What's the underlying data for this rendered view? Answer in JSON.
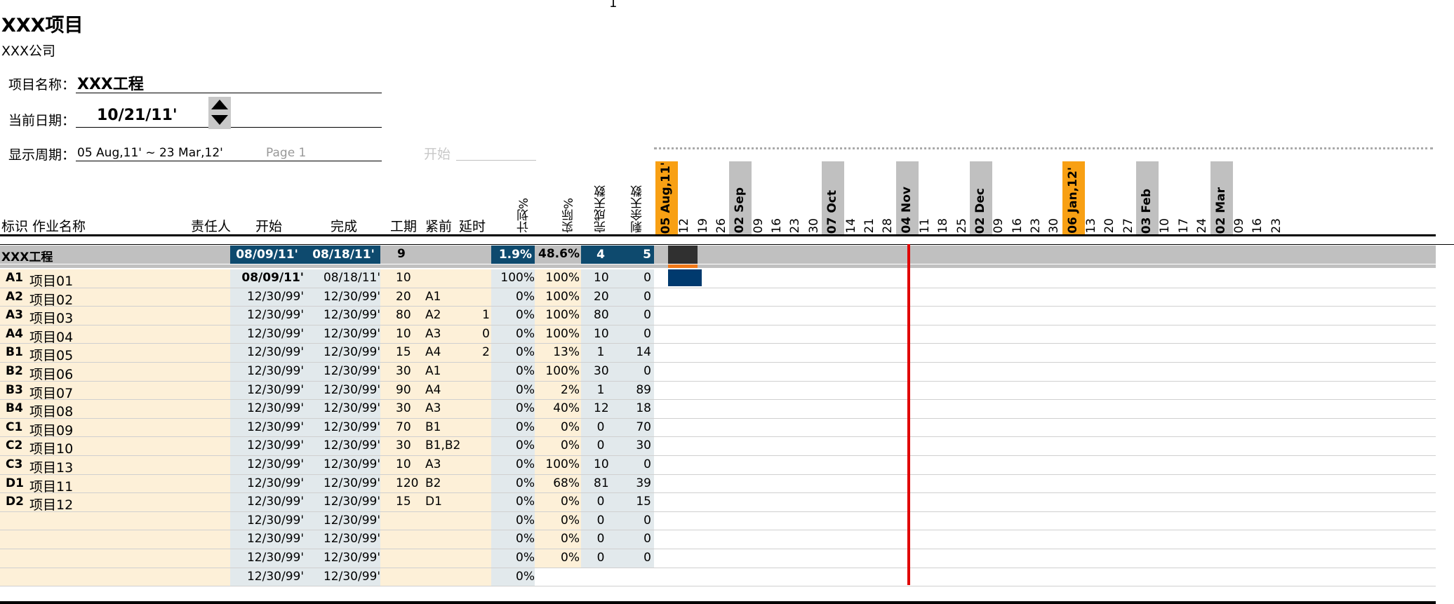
{
  "page_number": "1",
  "title": "XXX项目",
  "company": "XXX公司",
  "fields": {
    "project_name_label": "项目名称：",
    "project_name_value": "XXX工程",
    "current_date_label": "当前日期：",
    "current_date_value": "10/21/11'",
    "period_label": "显示周期：",
    "period_value": "05 Aug,11' ~ 23 Mar,12'",
    "page_label": "Page 1",
    "start_label": "开始"
  },
  "headers": {
    "id_name": "标识 作业名称",
    "owner": "责任人",
    "start": "开始",
    "finish": "完成",
    "duration": "工期",
    "predecessor": "紧前",
    "delay": "延时",
    "planned_pct": "计划%",
    "actual_pct": "实际%",
    "done_days": "完成天数",
    "remaining_days": "剩余天数"
  },
  "weeks": [
    "05 Aug,11'",
    "12",
    "19",
    "26",
    "02 Sep",
    "09",
    "16",
    "23",
    "30",
    "07 Oct",
    "14",
    "21",
    "28",
    "04 Nov",
    "11",
    "18",
    "25",
    "02 Dec",
    "09",
    "16",
    "23",
    "30",
    "06 Jan,12'",
    "13",
    "20",
    "27",
    "03 Feb",
    "10",
    "17",
    "24",
    "02 Mar",
    "09",
    "16",
    "23"
  ],
  "summary": {
    "name": "XXX工程",
    "start": "08/09/11'",
    "finish": "08/18/11'",
    "duration": "9",
    "planned_pct": "1.9%",
    "actual_pct": "48.6%",
    "done_days": "4",
    "remaining_days": "5"
  },
  "rows": [
    {
      "id": "A1",
      "name": "项目01",
      "start": "08/09/11'",
      "finish": "08/18/11'",
      "dur": "10",
      "pred": "",
      "delay": "",
      "plan": "100%",
      "act": "100%",
      "done": "10",
      "rem": "0"
    },
    {
      "id": "A2",
      "name": "项目02",
      "start": "12/30/99'",
      "finish": "12/30/99'",
      "dur": "20",
      "pred": "A1",
      "delay": "",
      "plan": "0%",
      "act": "100%",
      "done": "20",
      "rem": "0"
    },
    {
      "id": "A3",
      "name": "项目03",
      "start": "12/30/99'",
      "finish": "12/30/99'",
      "dur": "80",
      "pred": "A2",
      "delay": "1",
      "plan": "0%",
      "act": "100%",
      "done": "80",
      "rem": "0"
    },
    {
      "id": "A4",
      "name": "项目04",
      "start": "12/30/99'",
      "finish": "12/30/99'",
      "dur": "10",
      "pred": "A3",
      "delay": "0",
      "plan": "0%",
      "act": "100%",
      "done": "10",
      "rem": "0"
    },
    {
      "id": "B1",
      "name": "项目05",
      "start": "12/30/99'",
      "finish": "12/30/99'",
      "dur": "15",
      "pred": "A4",
      "delay": "2",
      "plan": "0%",
      "act": "13%",
      "done": "1",
      "rem": "14"
    },
    {
      "id": "B2",
      "name": "项目06",
      "start": "12/30/99'",
      "finish": "12/30/99'",
      "dur": "30",
      "pred": "A1",
      "delay": "",
      "plan": "0%",
      "act": "100%",
      "done": "30",
      "rem": "0"
    },
    {
      "id": "B3",
      "name": "项目07",
      "start": "12/30/99'",
      "finish": "12/30/99'",
      "dur": "90",
      "pred": "A4",
      "delay": "",
      "plan": "0%",
      "act": "2%",
      "done": "1",
      "rem": "89"
    },
    {
      "id": "B4",
      "name": "项目08",
      "start": "12/30/99'",
      "finish": "12/30/99'",
      "dur": "30",
      "pred": "A3",
      "delay": "",
      "plan": "0%",
      "act": "40%",
      "done": "12",
      "rem": "18"
    },
    {
      "id": "C1",
      "name": "项目09",
      "start": "12/30/99'",
      "finish": "12/30/99'",
      "dur": "70",
      "pred": "B1",
      "delay": "",
      "plan": "0%",
      "act": "0%",
      "done": "0",
      "rem": "70"
    },
    {
      "id": "C2",
      "name": "项目10",
      "start": "12/30/99'",
      "finish": "12/30/99'",
      "dur": "30",
      "pred": "B1,B2",
      "delay": "",
      "plan": "0%",
      "act": "0%",
      "done": "0",
      "rem": "30"
    },
    {
      "id": "C3",
      "name": "项目13",
      "start": "12/30/99'",
      "finish": "12/30/99'",
      "dur": "10",
      "pred": "A3",
      "delay": "",
      "plan": "0%",
      "act": "100%",
      "done": "10",
      "rem": "0"
    },
    {
      "id": "D1",
      "name": "项目11",
      "start": "12/30/99'",
      "finish": "12/30/99'",
      "dur": "120",
      "pred": "B2",
      "delay": "",
      "plan": "0%",
      "act": "68%",
      "done": "81",
      "rem": "39"
    },
    {
      "id": "D2",
      "name": "项目12",
      "start": "12/30/99'",
      "finish": "12/30/99'",
      "dur": "15",
      "pred": "D1",
      "delay": "",
      "plan": "0%",
      "act": "0%",
      "done": "0",
      "rem": "15"
    },
    {
      "id": "",
      "name": "",
      "start": "12/30/99'",
      "finish": "12/30/99'",
      "dur": "",
      "pred": "",
      "delay": "",
      "plan": "0%",
      "act": "0%",
      "done": "0",
      "rem": "0"
    },
    {
      "id": "",
      "name": "",
      "start": "12/30/99'",
      "finish": "12/30/99'",
      "dur": "",
      "pred": "",
      "delay": "",
      "plan": "0%",
      "act": "0%",
      "done": "0",
      "rem": "0"
    },
    {
      "id": "",
      "name": "",
      "start": "12/30/99'",
      "finish": "12/30/99'",
      "dur": "",
      "pred": "",
      "delay": "",
      "plan": "0%",
      "act": "0%",
      "done": "0",
      "rem": "0"
    },
    {
      "id": "",
      "name": "",
      "start": "12/30/99'",
      "finish": "12/30/99'",
      "dur": "",
      "pred": "",
      "delay": "",
      "plan": "0%",
      "act": "",
      "done": "",
      "rem": ""
    }
  ],
  "colors": {
    "name_bg": "#fdf0d8",
    "date_bg": "#e2e9ec",
    "summary_dark": "#0e4a6e",
    "summary_gray": "#c0c0c0",
    "month_orange": "#f8a014",
    "month_gray": "#c0c0c0",
    "today_red": "#e00000",
    "bar_blue": "#003a6e"
  }
}
